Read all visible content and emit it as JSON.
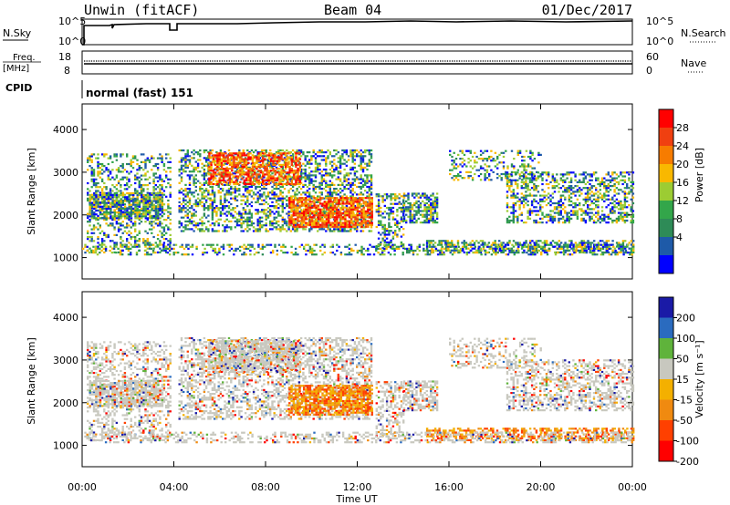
{
  "header": {
    "station": "Unwin (fitACF)",
    "beam": "Beam 04",
    "date": "01/Dec/2017"
  },
  "top_panels": {
    "nsky": {
      "label": "N.Sky",
      "tick_max": "10^5",
      "tick_min": "10^0"
    },
    "nsearch": {
      "label": "N.Search",
      "tick_max": "10^5",
      "tick_min": "10^0"
    },
    "freq": {
      "label_line1": "Freq.",
      "label_line2": "[MHz]",
      "tick_max": "18",
      "tick_min": "8"
    },
    "nave": {
      "label": "Nave",
      "tick_max": "60",
      "tick_min": "0"
    },
    "cpid": {
      "label": "CPID",
      "value": "normal (fast) 151"
    }
  },
  "chart_data": [
    {
      "type": "heatmap",
      "title": "",
      "ylabel": "Slant Range [km]",
      "xlabel": "",
      "yticks": [
        "1000",
        "2000",
        "3000",
        "4000"
      ],
      "ylim": [
        500,
        4600
      ],
      "xlim": [
        0,
        24
      ],
      "colorbar": {
        "label": "Power [dB]",
        "ticks": [
          "28",
          "24",
          "20",
          "16",
          "12",
          "8",
          "4"
        ],
        "colors": [
          "#ff0000",
          "#f04010",
          "#f77c00",
          "#f9b800",
          "#9ccc33",
          "#33a64a",
          "#2e8b57",
          "#1e5aa8",
          "#0000ff"
        ]
      }
    },
    {
      "type": "heatmap",
      "title": "",
      "ylabel": "Slant Range [km]",
      "xlabel": "Time UT",
      "yticks": [
        "1000",
        "2000",
        "3000",
        "4000"
      ],
      "ylim": [
        500,
        4600
      ],
      "xlim": [
        0,
        24
      ],
      "xticks": [
        "00:00",
        "04:00",
        "08:00",
        "12:00",
        "16:00",
        "20:00",
        "00:00"
      ],
      "colorbar": {
        "label": "Velocity [m s⁻¹]",
        "ticks": [
          "200",
          "100",
          "50",
          "15",
          "-15",
          "-50",
          "-100",
          "-200"
        ],
        "colors": [
          "#1a1aa6",
          "#2a6bbf",
          "#5fb33b",
          "#c8c8bf",
          "#f4b000",
          "#f08a10",
          "#ff4000",
          "#ff0000"
        ]
      }
    }
  ]
}
